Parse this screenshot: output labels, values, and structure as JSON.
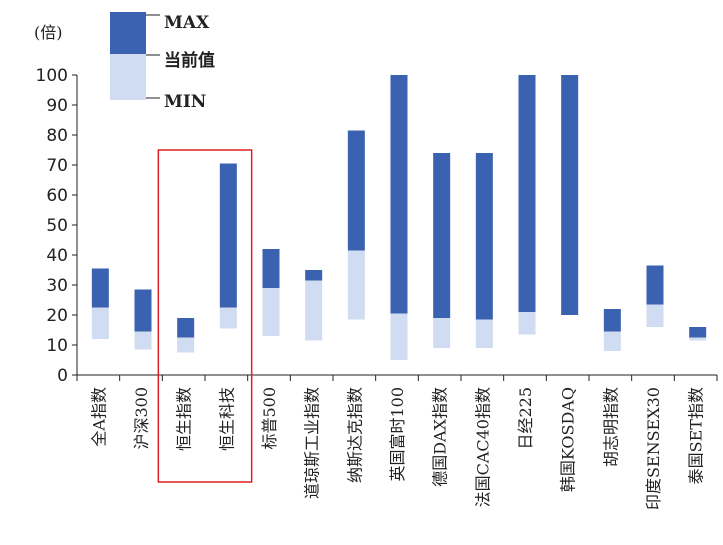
{
  "chart_data": {
    "type": "bar",
    "subtype": "floating-range",
    "unit_label": "(倍)",
    "ylim": [
      0,
      100
    ],
    "yticks": [
      0,
      10,
      20,
      30,
      40,
      50,
      60,
      70,
      80,
      90,
      100
    ],
    "grid": false,
    "legend_position": "top-left",
    "legend": [
      "MAX",
      "当前值",
      "MIN"
    ],
    "colors": {
      "upper": "#3a62b0",
      "lower": "#cfdcf1",
      "highlight": "#e02020",
      "axis": "#222222"
    },
    "categories": [
      "全A指数",
      "沪深300",
      "恒生指数",
      "恒生科技",
      "标普500",
      "道琼斯工业指数",
      "纳斯达克指数",
      "英国富时100",
      "德国DAX指数",
      "法国CAC40指数",
      "日经225",
      "韩国KOSDAQ",
      "胡志明指数",
      "印度SENSEX30",
      "泰国SET指数"
    ],
    "series": [
      {
        "name": "MAX",
        "values": [
          35.5,
          28.5,
          19,
          70.5,
          42,
          35,
          81.5,
          100,
          74,
          74,
          100,
          100,
          22,
          36.5,
          16
        ]
      },
      {
        "name": "当前值",
        "values": [
          22.5,
          14.5,
          12.5,
          22.5,
          29,
          31.5,
          41.5,
          20.5,
          19,
          18.5,
          21,
          20,
          14.5,
          23.5,
          12.5
        ]
      },
      {
        "name": "MIN",
        "values": [
          12,
          8.5,
          7.5,
          15.5,
          13,
          11.5,
          18.5,
          5,
          9,
          9,
          13.5,
          20,
          8,
          16,
          11.5
        ]
      }
    ],
    "highlighted_categories": [
      "恒生指数",
      "恒生科技"
    ]
  }
}
